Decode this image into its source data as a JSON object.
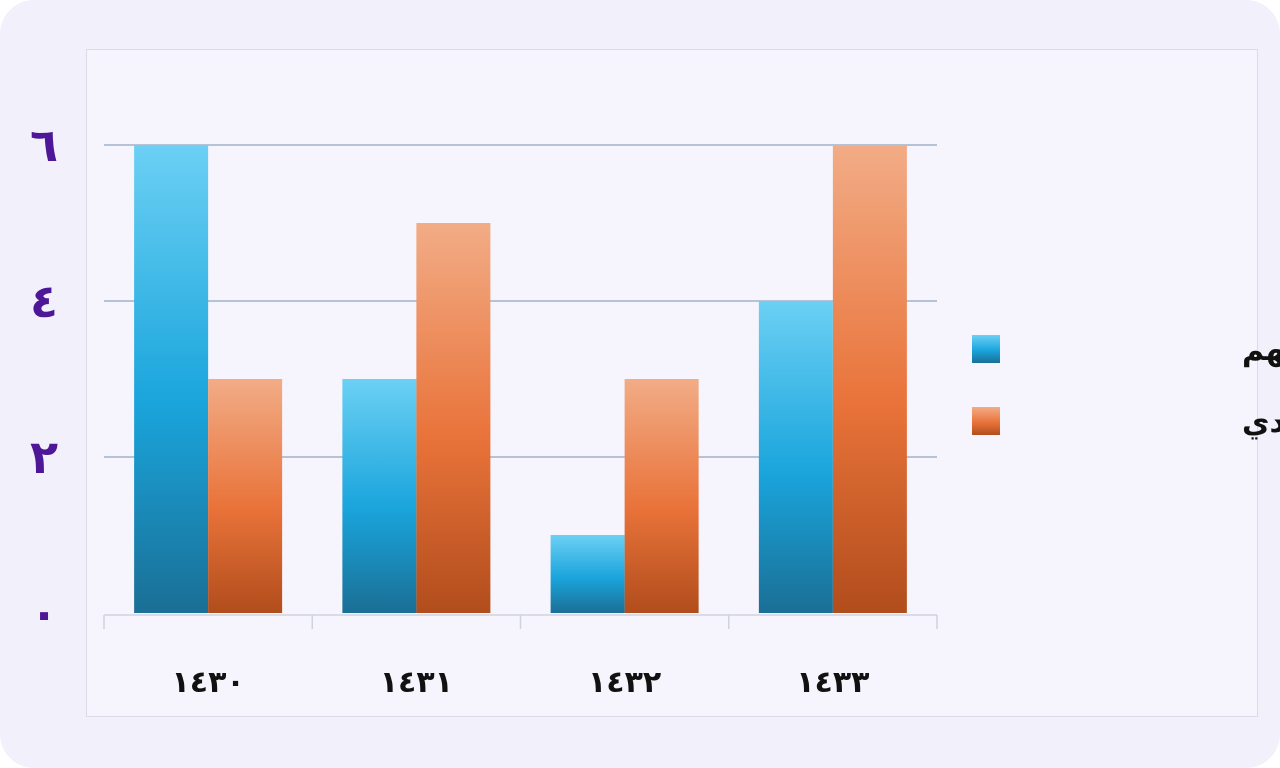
{
  "chart_data": {
    "type": "bar",
    "categories": [
      "١٤٣٠",
      "١٤٣١",
      "١٤٣٢",
      "١٤٣٣"
    ],
    "series": [
      {
        "name": "سوق الأسهم",
        "values": [
          6,
          3,
          1,
          4
        ]
      },
      {
        "name": "السوق السعودي",
        "values": [
          3,
          5,
          3,
          6
        ]
      }
    ],
    "y_ticks": [
      {
        "value": 0,
        "label": "٠"
      },
      {
        "value": 2,
        "label": "٢"
      },
      {
        "value": 4,
        "label": "٤"
      },
      {
        "value": 6,
        "label": "٦"
      }
    ],
    "ylim": [
      0,
      6
    ],
    "grid": true,
    "legend_position": "right",
    "colors": {
      "series_1": "#1ea6dc",
      "series_2": "#e9753a",
      "grid": "#8fa3bf",
      "y_tick_text": "#4d1797"
    }
  }
}
